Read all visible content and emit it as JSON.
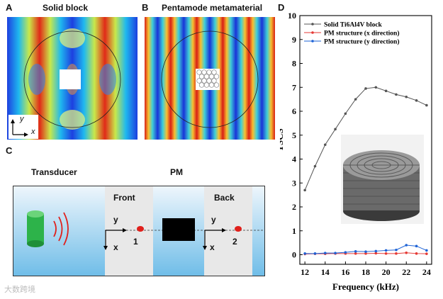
{
  "panels": {
    "a": {
      "letter": "A",
      "title": "Solid block",
      "axis_y": "y",
      "axis_x": "x"
    },
    "b": {
      "letter": "B",
      "title": "Pentamode metamaterial"
    },
    "c": {
      "letter": "C",
      "transducer": "Transducer",
      "pm": "PM",
      "front": "Front",
      "back": "Back",
      "front_y": "y",
      "front_x": "x",
      "back_y": "y",
      "back_x": "x",
      "point1": "1",
      "point2": "2"
    },
    "d": {
      "letter": "D"
    }
  },
  "colors": {
    "solid": "#555555",
    "pm_x": "#e53935",
    "pm_y": "#1e63d6",
    "water_top": "#eaf3fb",
    "water_bottom": "#7cc3ea",
    "cylinder": "#2db34a",
    "wave": "#e0201b"
  },
  "watermark": "大数跨境",
  "chart_data": {
    "type": "line",
    "xlabel": "Frequency (kHz)",
    "ylabel": "TSCS",
    "xlim": [
      11.5,
      24.5
    ],
    "ylim": [
      -0.4,
      10
    ],
    "xticks": [
      12,
      14,
      16,
      18,
      20,
      22,
      24
    ],
    "yticks": [
      0,
      1,
      2,
      3,
      4,
      5,
      6,
      7,
      8,
      9,
      10
    ],
    "x": [
      12,
      13,
      14,
      15,
      16,
      17,
      18,
      19,
      20,
      21,
      22,
      23,
      24
    ],
    "series": [
      {
        "name": "Solid Ti6Al4V block",
        "color": "#555555",
        "values": [
          2.7,
          3.7,
          4.6,
          5.25,
          5.9,
          6.5,
          6.95,
          7.0,
          6.85,
          6.7,
          6.6,
          6.45,
          6.25
        ]
      },
      {
        "name": "PM structure (x direction)",
        "color": "#e53935",
        "values": [
          0.03,
          0.04,
          0.04,
          0.05,
          0.05,
          0.05,
          0.05,
          0.06,
          0.05,
          0.05,
          0.08,
          0.05,
          0.04
        ]
      },
      {
        "name": "PM structure (y direction)",
        "color": "#1e63d6",
        "values": [
          0.05,
          0.05,
          0.07,
          0.07,
          0.1,
          0.14,
          0.13,
          0.15,
          0.18,
          0.2,
          0.4,
          0.36,
          0.18
        ]
      }
    ],
    "legend_position": "top-left"
  }
}
